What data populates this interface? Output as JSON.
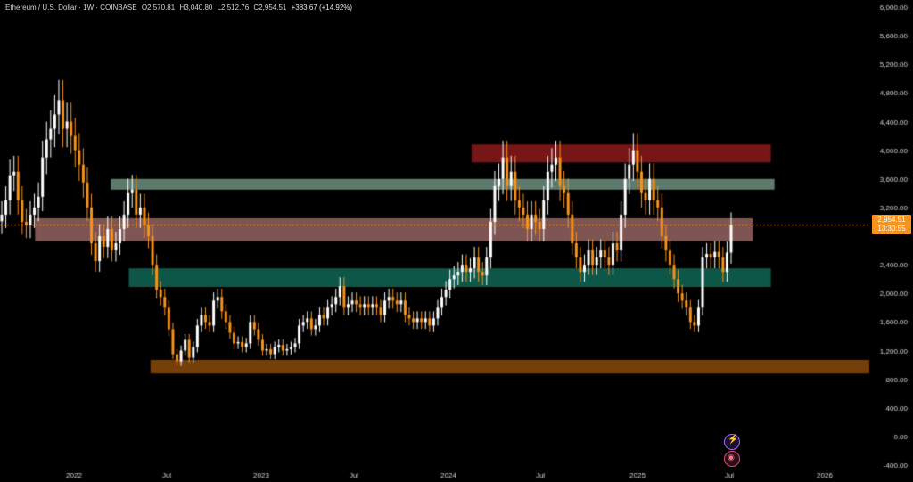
{
  "header": {
    "symbol": "Ethereum / U.S. Dollar · 1W · COINBASE",
    "open": "O2,570.81",
    "high": "H3,040.80",
    "low": "L2,512.76",
    "close": "C2,954.51",
    "change": "+383.67 (+14.92%)"
  },
  "price_label": {
    "price": "2,954.51",
    "timer": "13:30:55"
  },
  "colors": {
    "background": "#000000",
    "bull": "#ffffff",
    "bear": "#f7931a",
    "zone_red": "#8b1a1a",
    "zone_gray": "#6f8f80",
    "zone_pink": "#a8726f",
    "zone_teal": "#0f6655",
    "zone_orange": "#8a4a0c"
  },
  "chart_data": {
    "type": "candlestick",
    "ylim": [
      -400,
      6000
    ],
    "y_ticks": [
      "6,000.00",
      "5,600.00",
      "5,200.00",
      "4,800.00",
      "4,400.00",
      "4,000.00",
      "3,600.00",
      "3,200.00",
      "2,400.00",
      "2,000.00",
      "1,600.00",
      "1,200.00",
      "800.00",
      "400.00",
      "0.00",
      "-400.00"
    ],
    "x_ticks": [
      "2022",
      "Jul",
      "2023",
      "Jul",
      "2024",
      "Jul",
      "2025",
      "Jul",
      "2026"
    ],
    "zones": [
      {
        "name": "red",
        "low": 3830,
        "high": 4080,
        "from": "2024-03-04",
        "to": "2025-10-06"
      },
      {
        "name": "gray",
        "low": 3450,
        "high": 3600,
        "from": "2022-04-04",
        "to": "2025-10-13"
      },
      {
        "name": "pink",
        "low": 2730,
        "high": 3050,
        "from": "2021-11-08",
        "to": "2025-09-01"
      },
      {
        "name": "teal",
        "low": 2090,
        "high": 2350,
        "from": "2022-05-09",
        "to": "2025-10-06"
      },
      {
        "name": "orange",
        "low": 880,
        "high": 1070,
        "from": "2022-06-20",
        "to": "2026-05-01"
      }
    ],
    "series": [
      {
        "close": [
          3100,
          3300,
          3650,
          3700,
          3300,
          3000,
          2950,
          3100,
          3200,
          3350,
          3900,
          4150,
          4300,
          4500,
          4700,
          4300,
          4400,
          4200,
          4000,
          3800,
          3550,
          3200,
          2700,
          2450,
          2800,
          2650,
          2900,
          2600,
          2700,
          2900,
          3100,
          3400,
          3450,
          3100,
          3200,
          2950,
          2800,
          2400,
          2050,
          1950,
          1800,
          1500,
          1150,
          1050,
          1200,
          1350,
          1100,
          1250,
          1550,
          1700,
          1600,
          1550,
          1900,
          1950,
          1750,
          1600,
          1450,
          1300,
          1320,
          1250,
          1300,
          1600,
          1500,
          1350,
          1200,
          1220,
          1150,
          1250,
          1280,
          1200,
          1220,
          1250,
          1300,
          1550,
          1600,
          1650,
          1500,
          1550,
          1700,
          1650,
          1800,
          1850,
          1950,
          2100,
          1800,
          1850,
          1900,
          1850,
          1800,
          1850,
          1800,
          1850,
          1800,
          1700,
          1900,
          1950,
          1900,
          1850,
          1900,
          1700,
          1650,
          1600,
          1650,
          1600,
          1650,
          1550,
          1650,
          1800,
          1950,
          2050,
          2200,
          2250,
          2300,
          2400,
          2300,
          2350,
          2500,
          2300,
          2250,
          2500,
          3000,
          3500,
          3600,
          3900,
          3500,
          3700,
          3300,
          3200,
          3100,
          2900,
          3100,
          3000,
          2900,
          3300,
          3700,
          3800,
          3900,
          3500,
          3400,
          3100,
          2700,
          2500,
          2300,
          2400,
          2600,
          2400,
          2500,
          2600,
          2500,
          2400,
          2700,
          2600,
          3100,
          3600,
          3800,
          4000,
          3700,
          3400,
          3300,
          3600,
          3300,
          3200,
          2800,
          2600,
          2400,
          2200,
          2000,
          1900,
          1800,
          1600,
          1550,
          1800,
          2500,
          2550,
          2500,
          2580,
          2500,
          2300,
          2570,
          2954.51
        ]
      }
    ]
  }
}
